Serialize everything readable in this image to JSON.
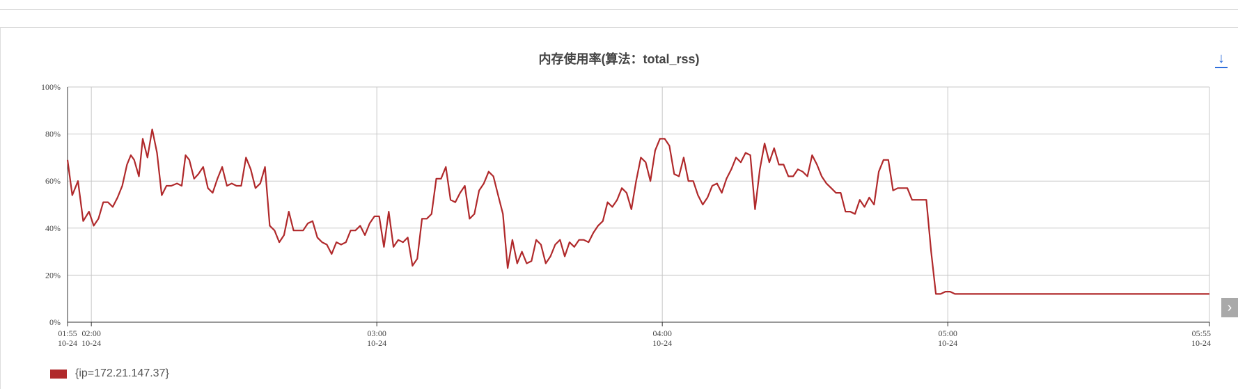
{
  "title": "内存使用率(算法：total_rss)",
  "colors": {
    "series": "#b0292b",
    "grid": "#c8c8c8",
    "axis": "#333333"
  },
  "icons": {
    "download": "download-icon",
    "next": "chevron-right-icon"
  },
  "chart_data": {
    "type": "line",
    "title": "内存使用率(算法：total_rss)",
    "xlabel": "",
    "ylabel": "",
    "ylim": [
      0,
      100
    ],
    "y_ticks": [
      "0%",
      "20%",
      "40%",
      "60%",
      "80%",
      "100%"
    ],
    "x_ticks": [
      {
        "t": "01:55",
        "d": "10-24"
      },
      {
        "t": "02:00",
        "d": "10-24"
      },
      {
        "t": "03:00",
        "d": "10-24"
      },
      {
        "t": "04:00",
        "d": "10-24"
      },
      {
        "t": "05:00",
        "d": "10-24"
      },
      {
        "t": "05:55",
        "d": "10-24"
      }
    ],
    "x_range_minutes_from_0155": [
      0,
      240
    ],
    "grid": true,
    "legend_position": "bottom-left",
    "series": [
      {
        "name": "{ip=172.21.147.37}",
        "color": "#b0292b",
        "points": [
          [
            0,
            69
          ],
          [
            1,
            54
          ],
          [
            2.2,
            60
          ],
          [
            3.3,
            43
          ],
          [
            4.5,
            47
          ],
          [
            5.5,
            41
          ],
          [
            6.5,
            44
          ],
          [
            7.5,
            51
          ],
          [
            8.5,
            51
          ],
          [
            9.5,
            49
          ],
          [
            10.5,
            53
          ],
          [
            11.5,
            58
          ],
          [
            12.5,
            67
          ],
          [
            13.3,
            71
          ],
          [
            14,
            69
          ],
          [
            15,
            62
          ],
          [
            15.8,
            78
          ],
          [
            16.8,
            70
          ],
          [
            17.8,
            82
          ],
          [
            18.8,
            72
          ],
          [
            19.8,
            54
          ],
          [
            20.8,
            58
          ],
          [
            21.8,
            58
          ],
          [
            23,
            59
          ],
          [
            24,
            58
          ],
          [
            24.8,
            71
          ],
          [
            25.6,
            69
          ],
          [
            26.6,
            61
          ],
          [
            27.5,
            63
          ],
          [
            28.5,
            66
          ],
          [
            29.5,
            57
          ],
          [
            30.5,
            55
          ],
          [
            31.5,
            61
          ],
          [
            32.5,
            66
          ],
          [
            33.5,
            58
          ],
          [
            34.5,
            59
          ],
          [
            35.5,
            58
          ],
          [
            36.5,
            58
          ],
          [
            37.5,
            70
          ],
          [
            38.5,
            65
          ],
          [
            39.5,
            57
          ],
          [
            40.5,
            59
          ],
          [
            41.5,
            66
          ],
          [
            42.5,
            41
          ],
          [
            43.5,
            39
          ],
          [
            44.5,
            34
          ],
          [
            45.5,
            37
          ],
          [
            46.5,
            47
          ],
          [
            47.5,
            39
          ],
          [
            48.5,
            39
          ],
          [
            49.5,
            39
          ],
          [
            50.5,
            42
          ],
          [
            51.5,
            43
          ],
          [
            52.5,
            36
          ],
          [
            53.5,
            34
          ],
          [
            54.5,
            33
          ],
          [
            55.5,
            29
          ],
          [
            56.5,
            34
          ],
          [
            57.5,
            33
          ],
          [
            58.5,
            34
          ],
          [
            59.5,
            39
          ],
          [
            60.5,
            39
          ],
          [
            61.5,
            41
          ],
          [
            62.5,
            37
          ],
          [
            63.5,
            42
          ],
          [
            64.5,
            45
          ],
          [
            65.5,
            45
          ],
          [
            66.5,
            32
          ],
          [
            67.5,
            47
          ],
          [
            68.5,
            32
          ],
          [
            69.5,
            35
          ],
          [
            70.5,
            34
          ],
          [
            71.5,
            36
          ],
          [
            72.5,
            24
          ],
          [
            73.5,
            27
          ],
          [
            74.5,
            44
          ],
          [
            75.5,
            44
          ],
          [
            76.5,
            46
          ],
          [
            77.5,
            61
          ],
          [
            78.5,
            61
          ],
          [
            79.5,
            66
          ],
          [
            80.5,
            52
          ],
          [
            81.5,
            51
          ],
          [
            82.5,
            55
          ],
          [
            83.5,
            58
          ],
          [
            84.5,
            44
          ],
          [
            85.5,
            46
          ],
          [
            86.5,
            56
          ],
          [
            87.5,
            59
          ],
          [
            88.5,
            64
          ],
          [
            89.5,
            62
          ],
          [
            90.5,
            54
          ],
          [
            91.5,
            46
          ],
          [
            92.5,
            23
          ],
          [
            93.5,
            35
          ],
          [
            94.5,
            25
          ],
          [
            95.5,
            30
          ],
          [
            96.5,
            25
          ],
          [
            97.5,
            26
          ],
          [
            98.5,
            35
          ],
          [
            99.5,
            33
          ],
          [
            100.5,
            25
          ],
          [
            101.5,
            28
          ],
          [
            102.5,
            33
          ],
          [
            103.5,
            35
          ],
          [
            104.5,
            28
          ],
          [
            105.5,
            34
          ],
          [
            106.5,
            32
          ],
          [
            107.5,
            35
          ],
          [
            108.5,
            35
          ],
          [
            109.5,
            34
          ],
          [
            110.5,
            38
          ],
          [
            111.5,
            41
          ],
          [
            112.5,
            43
          ],
          [
            113.5,
            51
          ],
          [
            114.5,
            49
          ],
          [
            115.5,
            52
          ],
          [
            116.5,
            57
          ],
          [
            117.5,
            55
          ],
          [
            118.5,
            48
          ],
          [
            119.5,
            60
          ],
          [
            120.5,
            70
          ],
          [
            121.5,
            68
          ],
          [
            122.5,
            60
          ],
          [
            123.5,
            73
          ],
          [
            124.5,
            78
          ],
          [
            125.5,
            78
          ],
          [
            126.5,
            75
          ],
          [
            127.5,
            63
          ],
          [
            128.5,
            62
          ],
          [
            129.5,
            70
          ],
          [
            130.5,
            60
          ],
          [
            131.5,
            60
          ],
          [
            132.5,
            54
          ],
          [
            133.5,
            50
          ],
          [
            134.5,
            53
          ],
          [
            135.5,
            58
          ],
          [
            136.5,
            59
          ],
          [
            137.5,
            55
          ],
          [
            138.5,
            61
          ],
          [
            139.5,
            65
          ],
          [
            140.5,
            70
          ],
          [
            141.5,
            68
          ],
          [
            142.5,
            72
          ],
          [
            143.5,
            71
          ],
          [
            144.5,
            48
          ],
          [
            145.5,
            65
          ],
          [
            146.5,
            76
          ],
          [
            147.5,
            68
          ],
          [
            148.5,
            74
          ],
          [
            149.5,
            67
          ],
          [
            150.5,
            67
          ],
          [
            151.5,
            62
          ],
          [
            152.5,
            62
          ],
          [
            153.5,
            65
          ],
          [
            154.5,
            64
          ],
          [
            155.5,
            62
          ],
          [
            156.5,
            71
          ],
          [
            157.5,
            67
          ],
          [
            158.5,
            62
          ],
          [
            159.5,
            59
          ],
          [
            160.5,
            57
          ],
          [
            161.5,
            55
          ],
          [
            162.5,
            55
          ],
          [
            163.5,
            47
          ],
          [
            164.5,
            47
          ],
          [
            165.5,
            46
          ],
          [
            166.5,
            52
          ],
          [
            167.5,
            49
          ],
          [
            168.5,
            53
          ],
          [
            169.5,
            50
          ],
          [
            170.5,
            64
          ],
          [
            171.5,
            69
          ],
          [
            172.5,
            69
          ],
          [
            173.5,
            56
          ],
          [
            174.5,
            57
          ],
          [
            175.5,
            57
          ],
          [
            176.5,
            57
          ],
          [
            177.5,
            52
          ],
          [
            178.5,
            52
          ],
          [
            179.5,
            52
          ],
          [
            180.5,
            52
          ],
          [
            181.5,
            30
          ],
          [
            182.5,
            12
          ],
          [
            183.5,
            12
          ],
          [
            184.5,
            13
          ],
          [
            185.5,
            13
          ],
          [
            186.5,
            12
          ],
          [
            190,
            12
          ],
          [
            200,
            12
          ],
          [
            220,
            12
          ],
          [
            240,
            12
          ]
        ]
      }
    ]
  },
  "legend": {
    "label": "{ip=172.21.147.37}"
  }
}
